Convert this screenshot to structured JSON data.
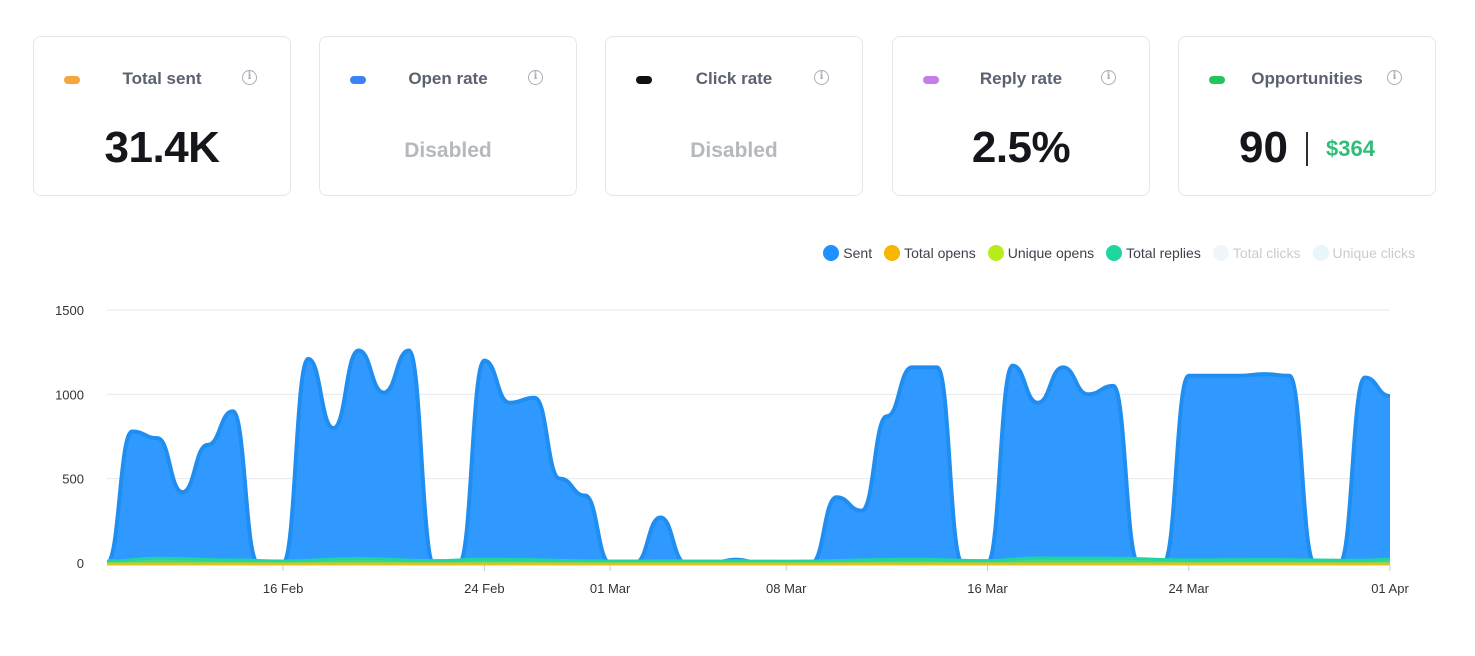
{
  "cards": [
    {
      "label": "Total sent",
      "dot_color": "#f5a63a",
      "value": "31.4K"
    },
    {
      "label": "Open rate",
      "dot_color": "#3b82f6",
      "value": "Disabled",
      "disabled": true
    },
    {
      "label": "Click rate",
      "dot_color": "#111111",
      "value": "Disabled",
      "disabled": true
    },
    {
      "label": "Reply rate",
      "dot_color": "#c27ee9",
      "value": "2.5%"
    },
    {
      "label": "Opportunities",
      "dot_color": "#22c55e",
      "value": "90",
      "secondary_value": "$364"
    }
  ],
  "info_glyph": "i",
  "legend": [
    {
      "name": "Sent",
      "color": "#1e90ff",
      "enabled": true
    },
    {
      "name": "Total opens",
      "color": "#f7b500",
      "enabled": true
    },
    {
      "name": "Unique opens",
      "color": "#b7ec1a",
      "enabled": true
    },
    {
      "name": "Total replies",
      "color": "#1fd6a0",
      "enabled": true
    },
    {
      "name": "Total clicks",
      "color": "#eef6fb",
      "enabled": false
    },
    {
      "name": "Unique clicks",
      "color": "#e8f5fb",
      "enabled": false
    }
  ],
  "chart_data": {
    "type": "area",
    "ylim": [
      0,
      1500
    ],
    "yticks": [
      0,
      500,
      1000,
      1500
    ],
    "xlim": [
      "2025-02-09",
      "2025-04-01"
    ],
    "xticks": [
      {
        "label": "16 Feb",
        "date": "2025-02-16"
      },
      {
        "label": "24 Feb",
        "date": "2025-02-24"
      },
      {
        "label": "01 Mar",
        "date": "2025-03-01"
      },
      {
        "label": "08 Mar",
        "date": "2025-03-08"
      },
      {
        "label": "16 Mar",
        "date": "2025-03-16"
      },
      {
        "label": "24 Mar",
        "date": "2025-03-24"
      },
      {
        "label": "01 Apr",
        "date": "2025-04-01"
      }
    ],
    "series": [
      {
        "name": "Sent",
        "color": "#1e90ff",
        "points": [
          [
            "2025-02-09",
            0
          ],
          [
            "2025-02-10",
            780
          ],
          [
            "2025-02-11",
            740
          ],
          [
            "2025-02-12",
            420
          ],
          [
            "2025-02-13",
            700
          ],
          [
            "2025-02-14",
            900
          ],
          [
            "2025-02-15",
            0
          ],
          [
            "2025-02-16",
            0
          ],
          [
            "2025-02-17",
            1210
          ],
          [
            "2025-02-18",
            800
          ],
          [
            "2025-02-19",
            1260
          ],
          [
            "2025-02-20",
            1010
          ],
          [
            "2025-02-21",
            1260
          ],
          [
            "2025-02-22",
            0
          ],
          [
            "2025-02-23",
            0
          ],
          [
            "2025-02-24",
            1200
          ],
          [
            "2025-02-25",
            950
          ],
          [
            "2025-02-26",
            980
          ],
          [
            "2025-02-27",
            500
          ],
          [
            "2025-02-28",
            400
          ],
          [
            "2025-03-01",
            0
          ],
          [
            "2025-03-02",
            0
          ],
          [
            "2025-03-03",
            270
          ],
          [
            "2025-03-04",
            0
          ],
          [
            "2025-03-05",
            0
          ],
          [
            "2025-03-06",
            20
          ],
          [
            "2025-03-07",
            0
          ],
          [
            "2025-03-08",
            0
          ],
          [
            "2025-03-09",
            0
          ],
          [
            "2025-03-10",
            390
          ],
          [
            "2025-03-11",
            310
          ],
          [
            "2025-03-12",
            870
          ],
          [
            "2025-03-13",
            1160
          ],
          [
            "2025-03-14",
            1160
          ],
          [
            "2025-03-15",
            0
          ],
          [
            "2025-03-16",
            0
          ],
          [
            "2025-03-17",
            1170
          ],
          [
            "2025-03-18",
            950
          ],
          [
            "2025-03-19",
            1160
          ],
          [
            "2025-03-20",
            1000
          ],
          [
            "2025-03-21",
            1050
          ],
          [
            "2025-03-22",
            0
          ],
          [
            "2025-03-23",
            0
          ],
          [
            "2025-03-24",
            1110
          ],
          [
            "2025-03-25",
            1110
          ],
          [
            "2025-03-26",
            1110
          ],
          [
            "2025-03-27",
            1120
          ],
          [
            "2025-03-28",
            1110
          ],
          [
            "2025-03-29",
            0
          ],
          [
            "2025-03-30",
            0
          ],
          [
            "2025-03-31",
            1100
          ],
          [
            "2025-04-01",
            990
          ]
        ]
      },
      {
        "name": "Total opens",
        "color": "#f7b500",
        "points": [
          [
            "2025-02-09",
            8
          ],
          [
            "2025-04-01",
            8
          ]
        ]
      },
      {
        "name": "Unique opens",
        "color": "#b7ec1a",
        "points": [
          [
            "2025-02-09",
            12
          ],
          [
            "2025-04-01",
            12
          ]
        ]
      },
      {
        "name": "Total replies",
        "color": "#1fd6a0",
        "points": [
          [
            "2025-02-09",
            10
          ],
          [
            "2025-02-11",
            28
          ],
          [
            "2025-02-14",
            18
          ],
          [
            "2025-02-16",
            12
          ],
          [
            "2025-02-19",
            26
          ],
          [
            "2025-02-22",
            14
          ],
          [
            "2025-02-24",
            22
          ],
          [
            "2025-03-01",
            12
          ],
          [
            "2025-03-08",
            10
          ],
          [
            "2025-03-13",
            22
          ],
          [
            "2025-03-16",
            14
          ],
          [
            "2025-03-18",
            30
          ],
          [
            "2025-03-21",
            28
          ],
          [
            "2025-03-24",
            18
          ],
          [
            "2025-03-27",
            20
          ],
          [
            "2025-03-31",
            16
          ],
          [
            "2025-04-01",
            22
          ]
        ]
      }
    ]
  }
}
